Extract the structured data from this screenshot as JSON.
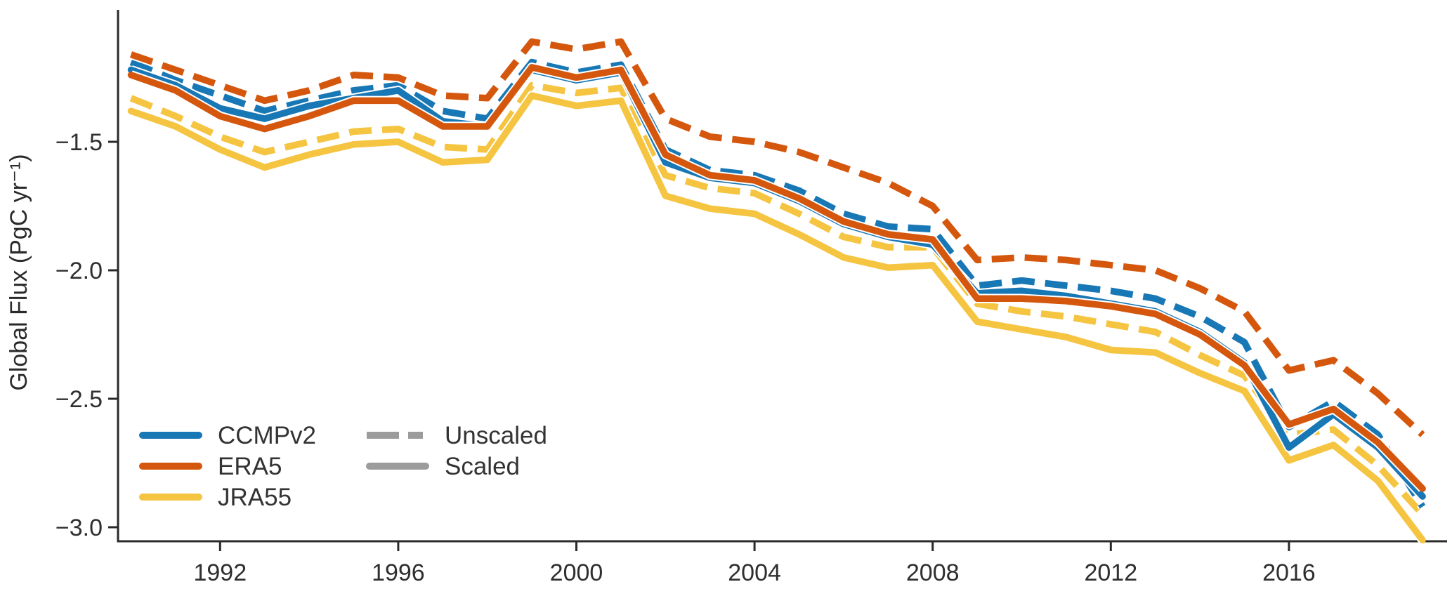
{
  "figure": {
    "ylabel": "Global Flux (PgC yr⁻¹)",
    "background": "#ffffff",
    "axis_color": "#2a2a2a",
    "text_color": "#2f2f2f",
    "legend": {
      "series": [
        {
          "label": "CCMPv2",
          "color": "#1877b5"
        },
        {
          "label": "ERA5",
          "color": "#d4570d"
        },
        {
          "label": "JRA55",
          "color": "#f5c440"
        }
      ],
      "styles": [
        {
          "label": "Unscaled",
          "dashed": true,
          "color": "#9c9c9c"
        },
        {
          "label": "Scaled",
          "dashed": false,
          "color": "#9c9c9c"
        }
      ]
    }
  },
  "chart_data": {
    "type": "line",
    "title": "",
    "xlabel": "",
    "ylabel": "Global Flux (PgC yr⁻¹)",
    "grid": false,
    "legend_position": "lower-left",
    "xlim": [
      1989.65,
      2019.55
    ],
    "ylim": [
      -3.06,
      -0.99
    ],
    "x_ticks": [
      1992,
      1996,
      2000,
      2004,
      2008,
      2012,
      2016
    ],
    "x_tick_labels": [
      "1992",
      "1996",
      "2000",
      "2004",
      "2008",
      "2012",
      "2016"
    ],
    "y_ticks": [
      -1.5,
      -2.0,
      -2.5,
      -3.0
    ],
    "y_tick_labels": [
      "−1.5",
      "−2.0",
      "−2.5",
      "−3.0"
    ],
    "x": [
      1990,
      1991,
      1992,
      1993,
      1994,
      1995,
      1996,
      1997,
      1998,
      1999,
      2000,
      2001,
      2002,
      2003,
      2004,
      2005,
      2006,
      2007,
      2008,
      2009,
      2010,
      2011,
      2012,
      2013,
      2014,
      2015,
      2016,
      2017,
      2018,
      2019
    ],
    "series": [
      {
        "name": "CCMPv2 Unscaled",
        "dataset": "CCMPv2",
        "variant": "Unscaled",
        "color": "#1877b5",
        "dashed": true,
        "values": [
          -1.19,
          -1.26,
          -1.32,
          -1.38,
          -1.34,
          -1.3,
          -1.28,
          -1.38,
          -1.41,
          -1.19,
          -1.23,
          -1.2,
          -1.53,
          -1.61,
          -1.63,
          -1.69,
          -1.78,
          -1.83,
          -1.84,
          -2.06,
          -2.04,
          -2.06,
          -2.08,
          -2.11,
          -2.18,
          -2.28,
          -2.61,
          -2.51,
          -2.64,
          -2.92
        ]
      },
      {
        "name": "CCMPv2 Scaled",
        "dataset": "CCMPv2",
        "variant": "Scaled",
        "color": "#1877b5",
        "dashed": false,
        "values": [
          -1.22,
          -1.28,
          -1.37,
          -1.41,
          -1.36,
          -1.33,
          -1.3,
          -1.42,
          -1.44,
          -1.22,
          -1.26,
          -1.23,
          -1.58,
          -1.64,
          -1.66,
          -1.73,
          -1.82,
          -1.87,
          -1.9,
          -2.09,
          -2.08,
          -2.1,
          -2.13,
          -2.16,
          -2.24,
          -2.36,
          -2.69,
          -2.56,
          -2.69,
          -2.88
        ]
      },
      {
        "name": "ERA5 Unscaled",
        "dataset": "ERA5",
        "variant": "Unscaled",
        "color": "#d4570d",
        "dashed": true,
        "values": [
          -1.16,
          -1.22,
          -1.28,
          -1.34,
          -1.3,
          -1.24,
          -1.25,
          -1.32,
          -1.33,
          -1.11,
          -1.14,
          -1.11,
          -1.41,
          -1.48,
          -1.5,
          -1.54,
          -1.6,
          -1.66,
          -1.75,
          -1.96,
          -1.95,
          -1.96,
          -1.98,
          -2.0,
          -2.07,
          -2.16,
          -2.39,
          -2.35,
          -2.48,
          -2.64
        ]
      },
      {
        "name": "ERA5 Scaled",
        "dataset": "ERA5",
        "variant": "Scaled",
        "color": "#d4570d",
        "dashed": false,
        "values": [
          -1.24,
          -1.3,
          -1.4,
          -1.45,
          -1.4,
          -1.34,
          -1.34,
          -1.44,
          -1.44,
          -1.21,
          -1.25,
          -1.22,
          -1.55,
          -1.63,
          -1.65,
          -1.72,
          -1.81,
          -1.86,
          -1.88,
          -2.11,
          -2.11,
          -2.12,
          -2.14,
          -2.17,
          -2.25,
          -2.37,
          -2.6,
          -2.54,
          -2.67,
          -2.85
        ]
      },
      {
        "name": "JRA55 Unscaled",
        "dataset": "JRA55",
        "variant": "Unscaled",
        "color": "#f5c440",
        "dashed": true,
        "values": [
          -1.33,
          -1.4,
          -1.48,
          -1.54,
          -1.5,
          -1.46,
          -1.45,
          -1.52,
          -1.53,
          -1.28,
          -1.31,
          -1.29,
          -1.63,
          -1.68,
          -1.7,
          -1.78,
          -1.87,
          -1.91,
          -1.91,
          -2.13,
          -2.16,
          -2.18,
          -2.21,
          -2.24,
          -2.33,
          -2.41,
          -2.64,
          -2.62,
          -2.76,
          -2.95
        ]
      },
      {
        "name": "JRA55 Scaled",
        "dataset": "JRA55",
        "variant": "Scaled",
        "color": "#f5c440",
        "dashed": false,
        "values": [
          -1.38,
          -1.44,
          -1.53,
          -1.6,
          -1.55,
          -1.51,
          -1.5,
          -1.58,
          -1.57,
          -1.32,
          -1.36,
          -1.34,
          -1.71,
          -1.76,
          -1.78,
          -1.86,
          -1.95,
          -1.99,
          -1.98,
          -2.2,
          -2.23,
          -2.26,
          -2.31,
          -2.32,
          -2.4,
          -2.47,
          -2.74,
          -2.68,
          -2.82,
          -3.05
        ]
      }
    ],
    "z_order": [
      "JRA55 Unscaled",
      "JRA55 Scaled",
      "CCMPv2 Unscaled",
      "CCMPv2 Scaled",
      "ERA5 Unscaled",
      "ERA5 Scaled"
    ]
  }
}
